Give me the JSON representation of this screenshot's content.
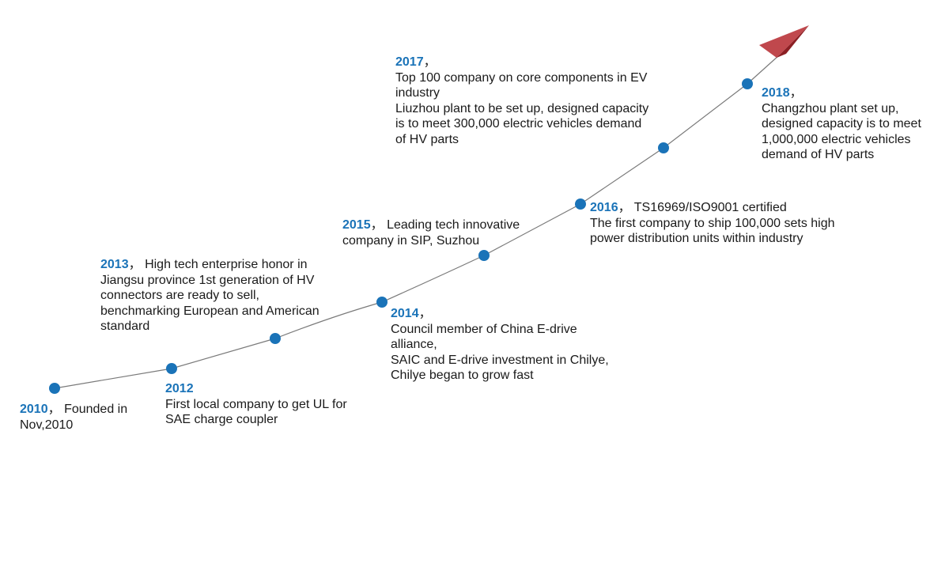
{
  "colors": {
    "accent": "#1a73b8",
    "line": "#7a7a7a",
    "arrow_light": "#c0484d",
    "arrow_dark": "#8c1f24",
    "text": "#1a1a1a"
  },
  "arrow_icon": "paper-plane-arrow-icon",
  "events": [
    {
      "id": "2010",
      "year": "2010",
      "sep": "，",
      "lines": [
        "Founded in",
        "Nov,2010"
      ]
    },
    {
      "id": "2012",
      "year": "2012",
      "sep": "",
      "lines": [
        "First local company to get UL for",
        "SAE charge coupler"
      ]
    },
    {
      "id": "2013",
      "year": "2013",
      "sep": "，",
      "lines": [
        "High tech enterprise honor in",
        "Jiangsu province 1st generation of HV",
        "connectors are ready to sell,",
        "benchmarking European and American",
        "standard"
      ]
    },
    {
      "id": "2014",
      "year": "2014",
      "sep": "，",
      "lines": [
        "Council member of China E-drive",
        "alliance,",
        "SAIC and E-drive investment in Chilye,",
        "Chilye began to grow fast"
      ]
    },
    {
      "id": "2015",
      "year": "2015",
      "sep": "，",
      "lines": [
        "Leading tech innovative",
        "company in SIP, Suzhou"
      ]
    },
    {
      "id": "2016",
      "year": "2016",
      "sep": "，",
      "lines": [
        "TS16969/ISO9001 certified",
        "The first company to ship 100,000 sets high",
        "power distribution units within industry"
      ]
    },
    {
      "id": "2017",
      "year": "2017",
      "sep": "，",
      "lines": [
        "Top 100 company on core components in EV",
        "industry",
        "Liuzhou plant to be set up, designed capacity",
        "is to meet 300,000 electric vehicles demand",
        "of HV parts"
      ]
    },
    {
      "id": "2018",
      "year": "2018",
      "sep": "，",
      "lines": [
        "Changzhou plant set up,",
        "designed capacity is to meet",
        "1,000,000 electric vehicles",
        "demand of HV parts"
      ]
    }
  ]
}
